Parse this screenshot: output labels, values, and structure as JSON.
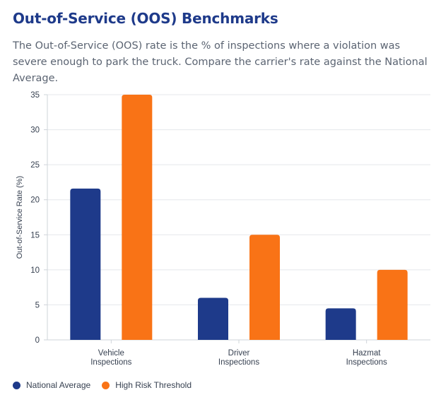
{
  "header": {
    "title": "Out-of-Service (OOS) Benchmarks",
    "description": "The Out-of-Service (OOS) rate is the % of inspections where a violation was severe enough to park the truck. Compare the carrier's rate against the National Average."
  },
  "chart_data": {
    "type": "bar",
    "categories": [
      [
        "Vehicle",
        "Inspections"
      ],
      [
        "Driver",
        "Inspections"
      ],
      [
        "Hazmat",
        "Inspections"
      ]
    ],
    "series": [
      {
        "name": "National Average",
        "color": "#1e3a8a",
        "values": [
          21.6,
          6.0,
          4.5
        ]
      },
      {
        "name": "High Risk Threshold",
        "color": "#f97316",
        "values": [
          35,
          15,
          10
        ]
      }
    ],
    "title": "",
    "xlabel": "",
    "ylabel": "Out-of-Service Rate (%)",
    "ylim": [
      0,
      35
    ],
    "yticks": [
      0,
      5,
      10,
      15,
      20,
      25,
      30,
      35
    ],
    "grid": true,
    "legend": "bottom-left"
  }
}
